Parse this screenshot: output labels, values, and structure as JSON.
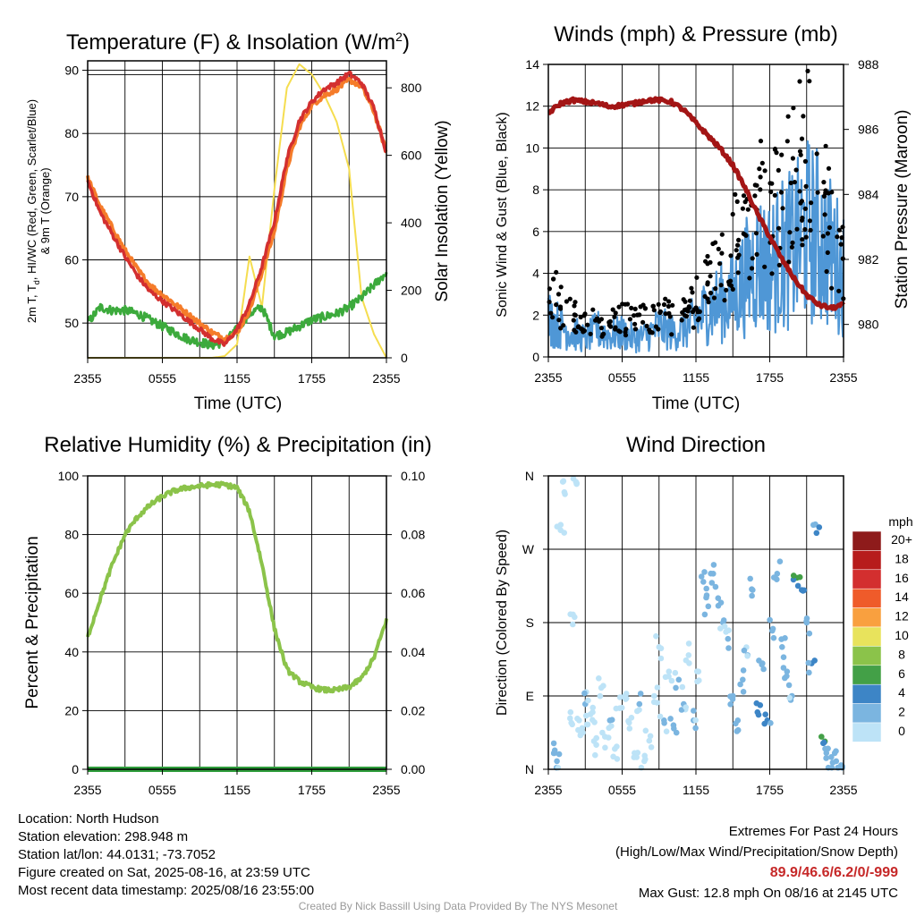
{
  "figure": {
    "titles": {
      "temperature": "Temperature (F) & Insolation (W/m",
      "temperature_sup": "2",
      "temperature_close": ")",
      "winds": "Winds (mph) & Pressure (mb)",
      "humidity": "Relative Humidity (%) & Precipitation (in)",
      "direction": "Wind Direction"
    },
    "time_label": "Time (UTC)",
    "x_ticks": [
      "2355",
      "0555",
      "1155",
      "1755",
      "2355"
    ],
    "temp_ylabel_line1": "2m T, T",
    "temp_ylabel_sub": "d",
    "temp_ylabel_rest": ", HI/WC (Red, Green, Scarlet/Blue)",
    "temp_ylabel_line2": "& 9m T (Orange)",
    "temp_y2label": "Solar Insolation (Yellow)",
    "wind_ylabel": "Sonic Wind & Gust (Blue, Black)",
    "wind_y2label": "Station Pressure (Maroon)",
    "rh_ylabel": "Percent & Precipitation",
    "dir_ylabel": "Direction (Colored By Speed)",
    "dir_ticks": [
      "N",
      "E",
      "S",
      "W",
      "N"
    ],
    "colorbar_title": "mph",
    "colorbar_labels": [
      "20+",
      "18",
      "16",
      "14",
      "12",
      "10",
      "8",
      "6",
      "4",
      "2",
      "0"
    ],
    "colorbar_colors": [
      "#8e1b1b",
      "#b71c1c",
      "#d32f2f",
      "#ef5b2a",
      "#f9a03f",
      "#e8e35c",
      "#8bc34a",
      "#43a047",
      "#3d85c6",
      "#7bb5e0",
      "#bde3f7"
    ]
  },
  "colors": {
    "temperature": "#d32f2f",
    "temperature_9m": "#f57c2a",
    "dewpoint": "#3caa3c",
    "insolation": "#f5dd4f",
    "wind": "#4f97d6",
    "gust": "#000000",
    "pressure": "#a31515",
    "rh": "#8bc34a",
    "precip": "#2f9e3c"
  },
  "chart_data": [
    {
      "type": "line",
      "title": "Temperature (F) & Insolation (W/m2)",
      "xlabel": "Time (UTC)",
      "ylabel": "2m T, Td, HI/WC (Red, Green, Scarlet/Blue) & 9m T (Orange)",
      "y2label": "Solar Insolation (Yellow)",
      "x_hours": [
        0,
        1,
        2,
        3,
        4,
        5,
        6,
        7,
        8,
        9,
        10,
        11,
        12,
        13,
        14,
        15,
        16,
        17,
        18,
        19,
        20,
        21,
        22,
        23,
        24
      ],
      "xlim": [
        0,
        24
      ],
      "ylim": [
        44.5,
        91.5
      ],
      "y2lim": [
        0,
        880
      ],
      "yticks": [
        50,
        60,
        70,
        80,
        90
      ],
      "y2ticks": [
        0,
        200,
        400,
        600,
        800
      ],
      "series": [
        {
          "name": "2m T",
          "axis": "left",
          "values": [
            72.5,
            67.5,
            64.0,
            60.5,
            57.5,
            55.0,
            53.5,
            52.0,
            50.5,
            49.0,
            47.5,
            46.6,
            49.0,
            53.0,
            59.0,
            66.0,
            76.0,
            82.0,
            85.0,
            87.0,
            88.0,
            89.5,
            88.0,
            84.0,
            77.0
          ]
        },
        {
          "name": "9m T",
          "axis": "left",
          "values": [
            73.0,
            68.5,
            65.0,
            61.5,
            58.5,
            56.0,
            54.5,
            53.0,
            51.5,
            50.0,
            48.5,
            47.5,
            48.5,
            52.0,
            58.0,
            64.5,
            74.5,
            81.0,
            84.5,
            86.0,
            87.0,
            88.5,
            87.5,
            83.5,
            77.0
          ]
        },
        {
          "name": "Td",
          "axis": "left",
          "values": [
            50.0,
            52.5,
            52.0,
            52.0,
            51.5,
            50.5,
            49.5,
            48.5,
            47.5,
            47.0,
            46.5,
            47.0,
            49.0,
            51.5,
            52.5,
            48.0,
            48.5,
            49.5,
            50.5,
            51.0,
            51.5,
            52.5,
            54.0,
            56.0,
            58.0
          ]
        },
        {
          "name": "Solar Insolation",
          "axis": "right",
          "values": [
            0,
            0,
            0,
            0,
            0,
            0,
            0,
            0,
            0,
            0,
            0,
            5,
            40,
            300,
            150,
            500,
            800,
            870,
            840,
            780,
            700,
            560,
            180,
            70,
            0
          ]
        }
      ]
    },
    {
      "type": "line",
      "title": "Winds (mph) & Pressure (mb)",
      "xlabel": "Time (UTC)",
      "ylabel": "Sonic Wind & Gust (Blue, Black)",
      "y2label": "Station Pressure (Maroon)",
      "x_hours": [
        0,
        1,
        2,
        3,
        4,
        5,
        6,
        7,
        8,
        9,
        10,
        11,
        12,
        13,
        14,
        15,
        16,
        17,
        18,
        19,
        20,
        21,
        22,
        23,
        24
      ],
      "xlim": [
        0,
        24
      ],
      "ylim": [
        0,
        14
      ],
      "y2lim": [
        979.0,
        988.0
      ],
      "yticks": [
        0,
        2,
        4,
        6,
        8,
        10,
        12,
        14
      ],
      "y2ticks": [
        980,
        982,
        984,
        986,
        988
      ],
      "series": [
        {
          "name": "Sonic Wind",
          "axis": "left",
          "values": [
            1.3,
            1.0,
            0.8,
            0.6,
            0.9,
            0.7,
            0.8,
            0.6,
            0.7,
            1.0,
            0.8,
            0.9,
            1.2,
            1.6,
            1.8,
            2.0,
            2.6,
            3.2,
            3.0,
            3.4,
            3.6,
            4.2,
            4.0,
            3.4,
            2.8
          ]
        },
        {
          "name": "Gust",
          "axis": "left",
          "values": [
            3.6,
            2.4,
            2.0,
            1.6,
            1.8,
            1.7,
            1.9,
            1.6,
            1.8,
            2.2,
            1.9,
            2.1,
            2.6,
            3.5,
            4.5,
            5.5,
            6.5,
            7.5,
            6.5,
            7.5,
            8.5,
            10.0,
            9.0,
            6.0,
            4.5
          ]
        },
        {
          "name": "Station Pressure",
          "axis": "right",
          "values": [
            986.5,
            986.8,
            986.9,
            986.85,
            986.8,
            986.7,
            986.75,
            986.8,
            986.9,
            986.9,
            986.85,
            986.6,
            986.2,
            985.8,
            985.4,
            984.9,
            984.2,
            983.4,
            982.7,
            982.0,
            981.4,
            980.9,
            980.6,
            980.5,
            980.6
          ]
        }
      ]
    },
    {
      "type": "line",
      "title": "Relative Humidity (%) & Precipitation (in)",
      "ylabel": "Percent & Precipitation",
      "x_hours": [
        0,
        1,
        2,
        3,
        4,
        5,
        6,
        7,
        8,
        9,
        10,
        11,
        12,
        13,
        14,
        15,
        16,
        17,
        18,
        19,
        20,
        21,
        22,
        23,
        24
      ],
      "xlim": [
        0,
        24
      ],
      "ylim": [
        0,
        100
      ],
      "y2lim": [
        0,
        0.1
      ],
      "yticks": [
        0,
        20,
        40,
        60,
        80,
        100
      ],
      "y2ticks": [
        "0.00",
        "0.02",
        "0.04",
        "0.06",
        "0.08",
        "0.10"
      ],
      "series": [
        {
          "name": "RH",
          "axis": "left",
          "values": [
            45,
            58,
            70,
            80,
            86,
            90,
            93,
            95,
            96,
            96.5,
            97,
            97,
            96,
            88,
            70,
            48,
            34,
            30,
            28,
            27,
            27,
            28,
            31,
            38,
            51
          ]
        },
        {
          "name": "Precipitation",
          "axis": "right",
          "values": [
            0,
            0,
            0,
            0,
            0,
            0,
            0,
            0,
            0,
            0,
            0,
            0,
            0,
            0,
            0,
            0,
            0,
            0,
            0,
            0,
            0,
            0,
            0,
            0,
            0
          ]
        }
      ]
    },
    {
      "type": "scatter",
      "title": "Wind Direction",
      "ylabel": "Direction (Colored By Speed)",
      "ylim": [
        0,
        360
      ],
      "yticks": [
        "N",
        "E",
        "S",
        "W",
        "N"
      ],
      "points": [
        [
          0.5,
          20,
          3
        ],
        [
          0.7,
          10,
          2
        ],
        [
          1.0,
          300,
          1
        ],
        [
          1.3,
          340,
          1
        ],
        [
          1.8,
          70,
          1
        ],
        [
          2.0,
          190,
          1
        ],
        [
          2.3,
          350,
          1
        ],
        [
          2.5,
          60,
          1
        ],
        [
          2.8,
          45,
          1
        ],
        [
          3.0,
          80,
          2
        ],
        [
          3.2,
          55,
          1
        ],
        [
          3.6,
          70,
          1
        ],
        [
          3.9,
          30,
          1
        ],
        [
          4.3,
          100,
          1
        ],
        [
          4.6,
          40,
          1
        ],
        [
          5.0,
          60,
          2
        ],
        [
          5.4,
          25,
          1
        ],
        [
          5.8,
          75,
          1
        ],
        [
          6.2,
          90,
          1
        ],
        [
          6.6,
          50,
          1
        ],
        [
          7.0,
          20,
          1
        ],
        [
          7.4,
          80,
          2
        ],
        [
          7.8,
          10,
          1
        ],
        [
          8.2,
          35,
          1
        ],
        [
          8.6,
          90,
          1
        ],
        [
          9.0,
          150,
          1
        ],
        [
          9.4,
          60,
          2
        ],
        [
          9.8,
          120,
          1
        ],
        [
          10.2,
          50,
          3
        ],
        [
          10.6,
          110,
          2
        ],
        [
          11.0,
          80,
          2
        ],
        [
          11.4,
          140,
          1
        ],
        [
          11.8,
          60,
          2
        ],
        [
          12.2,
          120,
          1
        ],
        [
          12.6,
          230,
          3
        ],
        [
          13.0,
          200,
          3
        ],
        [
          13.4,
          240,
          2
        ],
        [
          13.8,
          210,
          3
        ],
        [
          14.2,
          180,
          2
        ],
        [
          14.6,
          160,
          2
        ],
        [
          15.0,
          90,
          3
        ],
        [
          15.4,
          60,
          3
        ],
        [
          15.8,
          110,
          3
        ],
        [
          16.2,
          140,
          2
        ],
        [
          16.6,
          220,
          3
        ],
        [
          17.0,
          70,
          4
        ],
        [
          17.4,
          130,
          3
        ],
        [
          17.8,
          60,
          4
        ],
        [
          18.2,
          170,
          3
        ],
        [
          18.6,
          240,
          3
        ],
        [
          19.0,
          150,
          3
        ],
        [
          19.4,
          120,
          3
        ],
        [
          19.8,
          90,
          2
        ],
        [
          20.2,
          235,
          6
        ],
        [
          20.6,
          220,
          5
        ],
        [
          21.0,
          180,
          3
        ],
        [
          21.4,
          130,
          4
        ],
        [
          21.8,
          290,
          4
        ],
        [
          22.2,
          40,
          6
        ],
        [
          22.6,
          20,
          3
        ],
        [
          23.0,
          15,
          3
        ],
        [
          23.4,
          10,
          3
        ],
        [
          23.8,
          5,
          3
        ]
      ]
    }
  ],
  "info": {
    "location": "Location: North Hudson",
    "elevation": "Station elevation: 298.948 m",
    "latlon": "Station lat/lon: 44.0131; -73.7052",
    "created": "Figure created on Sat, 2025-08-16, at 23:59 UTC",
    "recent": "Most recent data timestamp: 2025/08/16 23:55:00"
  },
  "extremes": {
    "title": "Extremes For Past 24 Hours",
    "subtitle": "(High/Low/Max Wind/Precipitation/Snow Depth)",
    "values": "89.9/46.6/6.2/0/-999",
    "gust": "Max Gust: 12.8 mph On 08/16 at 2145 UTC"
  },
  "credit": "Created By Nick Bassill Using Data Provided By The NYS Mesonet"
}
